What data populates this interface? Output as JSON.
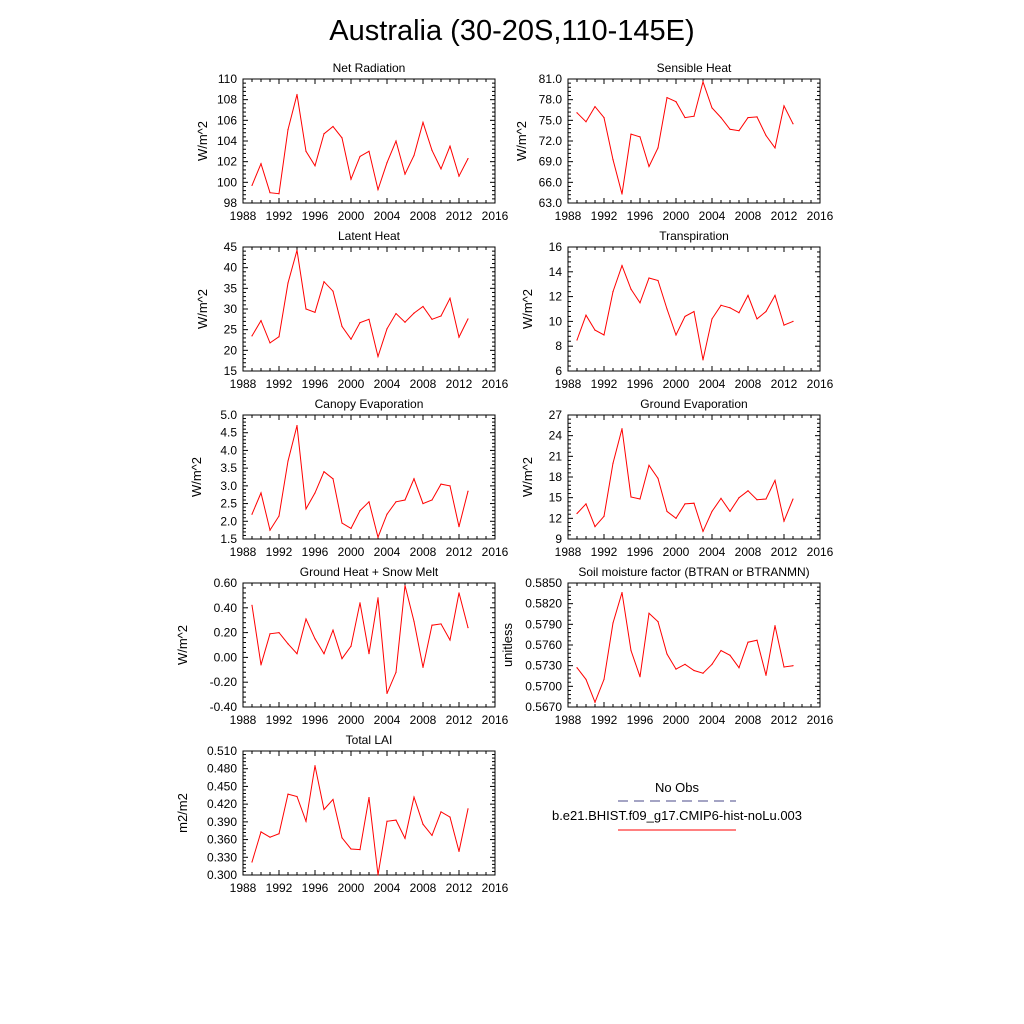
{
  "title": "Australia (30-20S,110-145E)",
  "colors": {
    "series": "#ff0000",
    "axis": "#000000",
    "obs_legend": "#4a4a8a"
  },
  "legend": {
    "obs_label": "No Obs",
    "model_label": "b.e21.BHIST.f09_g17.CMIP6-hist-noLu.003"
  },
  "chart_data": [
    {
      "type": "line",
      "title": "Net Radiation",
      "ylabel": "W/m^2",
      "xlim": [
        1988,
        2016
      ],
      "ylim": [
        98,
        110
      ],
      "xticks": [
        "1988",
        "1992",
        "1996",
        "2000",
        "2004",
        "2008",
        "2012",
        "2016"
      ],
      "yticks": [
        "98",
        "100",
        "102",
        "104",
        "106",
        "108",
        "110"
      ],
      "x": [
        1989,
        1990,
        1991,
        1992,
        1993,
        1994,
        1995,
        1996,
        1997,
        1998,
        1999,
        2000,
        2001,
        2002,
        2003,
        2004,
        2005,
        2006,
        2007,
        2008,
        2009,
        2010,
        2011,
        2012,
        2013
      ],
      "y": [
        99.7,
        101.8,
        99.0,
        98.9,
        105.1,
        108.5,
        103.0,
        101.6,
        104.7,
        105.4,
        104.3,
        100.3,
        102.5,
        103.0,
        99.3,
        101.9,
        104.0,
        100.8,
        102.6,
        105.8,
        103.1,
        101.3,
        103.5,
        100.6,
        102.3
      ]
    },
    {
      "type": "line",
      "title": "Sensible Heat",
      "ylabel": "W/m^2",
      "xlim": [
        1988,
        2016
      ],
      "ylim": [
        63.0,
        81.0
      ],
      "xticks": [
        "1988",
        "1992",
        "1996",
        "2000",
        "2004",
        "2008",
        "2012",
        "2016"
      ],
      "yticks": [
        "63.0",
        "66.0",
        "69.0",
        "72.0",
        "75.0",
        "78.0",
        "81.0"
      ],
      "x": [
        1989,
        1990,
        1991,
        1992,
        1993,
        1994,
        1995,
        1996,
        1997,
        1998,
        1999,
        2000,
        2001,
        2002,
        2003,
        2004,
        2005,
        2006,
        2007,
        2008,
        2009,
        2010,
        2011,
        2012,
        2013
      ],
      "y": [
        76.1,
        74.8,
        77.0,
        75.4,
        69.3,
        64.3,
        73.0,
        72.6,
        68.3,
        71.0,
        78.3,
        77.7,
        75.4,
        75.6,
        80.6,
        76.8,
        75.4,
        73.7,
        73.5,
        75.4,
        75.5,
        72.8,
        71.0,
        77.1,
        74.5
      ]
    },
    {
      "type": "line",
      "title": "Latent Heat",
      "ylabel": "W/m^2",
      "xlim": [
        1988,
        2016
      ],
      "ylim": [
        15,
        45
      ],
      "xticks": [
        "1988",
        "1992",
        "1996",
        "2000",
        "2004",
        "2008",
        "2012",
        "2016"
      ],
      "yticks": [
        "15",
        "20",
        "25",
        "30",
        "35",
        "40",
        "45"
      ],
      "x": [
        1989,
        1990,
        1991,
        1992,
        1993,
        1994,
        1995,
        1996,
        1997,
        1998,
        1999,
        2000,
        2001,
        2002,
        2003,
        2004,
        2005,
        2006,
        2007,
        2008,
        2009,
        2010,
        2011,
        2012,
        2013
      ],
      "y": [
        23.5,
        27.2,
        21.8,
        23.3,
        36.3,
        44.2,
        30.0,
        29.2,
        36.6,
        34.3,
        25.8,
        22.7,
        26.7,
        27.5,
        18.5,
        25.2,
        28.9,
        26.8,
        29.0,
        30.6,
        27.5,
        28.3,
        32.6,
        23.2,
        27.6
      ]
    },
    {
      "type": "line",
      "title": "Transpiration",
      "ylabel": "W/m^2",
      "xlim": [
        1988,
        2016
      ],
      "ylim": [
        6,
        16
      ],
      "xticks": [
        "1988",
        "1992",
        "1996",
        "2000",
        "2004",
        "2008",
        "2012",
        "2016"
      ],
      "yticks": [
        "6",
        "8",
        "10",
        "12",
        "14",
        "16"
      ],
      "x": [
        1989,
        1990,
        1991,
        1992,
        1993,
        1994,
        1995,
        1996,
        1997,
        1998,
        1999,
        2000,
        2001,
        2002,
        2003,
        2004,
        2005,
        2006,
        2007,
        2008,
        2009,
        2010,
        2011,
        2012,
        2013
      ],
      "y": [
        8.5,
        10.5,
        9.3,
        8.9,
        12.4,
        14.5,
        12.6,
        11.5,
        13.5,
        13.3,
        11.0,
        8.9,
        10.4,
        10.8,
        6.9,
        10.2,
        11.3,
        11.1,
        10.7,
        12.1,
        10.2,
        10.8,
        12.1,
        9.7,
        10.0
      ]
    },
    {
      "type": "line",
      "title": "Canopy Evaporation",
      "ylabel": "W/m^2",
      "xlim": [
        1988,
        2016
      ],
      "ylim": [
        1.5,
        5.0
      ],
      "xticks": [
        "1988",
        "1992",
        "1996",
        "2000",
        "2004",
        "2008",
        "2012",
        "2016"
      ],
      "yticks": [
        "1.5",
        "2.0",
        "2.5",
        "3.0",
        "3.5",
        "4.0",
        "4.5",
        "5.0"
      ],
      "x": [
        1989,
        1990,
        1991,
        1992,
        1993,
        1994,
        1995,
        1996,
        1997,
        1998,
        1999,
        2000,
        2001,
        2002,
        2003,
        2004,
        2005,
        2006,
        2007,
        2008,
        2009,
        2010,
        2011,
        2012,
        2013
      ],
      "y": [
        2.2,
        2.8,
        1.75,
        2.15,
        3.7,
        4.7,
        2.35,
        2.8,
        3.4,
        3.2,
        1.95,
        1.8,
        2.3,
        2.55,
        1.55,
        2.2,
        2.55,
        2.6,
        3.2,
        2.5,
        2.6,
        3.05,
        3.0,
        1.85,
        2.85
      ]
    },
    {
      "type": "line",
      "title": "Ground Evaporation",
      "ylabel": "W/m^2",
      "xlim": [
        1988,
        2016
      ],
      "ylim": [
        9,
        27
      ],
      "xticks": [
        "1988",
        "1992",
        "1996",
        "2000",
        "2004",
        "2008",
        "2012",
        "2016"
      ],
      "yticks": [
        "9",
        "12",
        "15",
        "18",
        "21",
        "24",
        "27"
      ],
      "x": [
        1989,
        1990,
        1991,
        1992,
        1993,
        1994,
        1995,
        1996,
        1997,
        1998,
        1999,
        2000,
        2001,
        2002,
        2003,
        2004,
        2005,
        2006,
        2007,
        2008,
        2009,
        2010,
        2011,
        2012,
        2013
      ],
      "y": [
        12.7,
        14.1,
        10.8,
        12.3,
        20.0,
        25.0,
        15.1,
        14.8,
        19.7,
        17.8,
        13.0,
        12.0,
        14.1,
        14.2,
        10.1,
        13.0,
        14.9,
        13.0,
        15.0,
        16.0,
        14.7,
        14.8,
        17.5,
        11.6,
        14.8
      ]
    },
    {
      "type": "line",
      "title": "Ground Heat + Snow Melt",
      "ylabel": "W/m^2",
      "xlim": [
        1988,
        2016
      ],
      "ylim": [
        -0.4,
        0.6
      ],
      "xticks": [
        "1988",
        "1992",
        "1996",
        "2000",
        "2004",
        "2008",
        "2012",
        "2016"
      ],
      "yticks": [
        "-0.40",
        "-0.20",
        "0.00",
        "0.20",
        "0.40",
        "0.60"
      ],
      "x": [
        1989,
        1990,
        1991,
        1992,
        1993,
        1994,
        1995,
        1996,
        1997,
        1998,
        1999,
        2000,
        2001,
        2002,
        2003,
        2004,
        2005,
        2006,
        2007,
        2008,
        2009,
        2010,
        2011,
        2012,
        2013
      ],
      "y": [
        0.42,
        -0.06,
        0.19,
        0.2,
        0.11,
        0.03,
        0.31,
        0.15,
        0.03,
        0.22,
        -0.01,
        0.09,
        0.44,
        0.03,
        0.48,
        -0.29,
        -0.12,
        0.58,
        0.29,
        -0.08,
        0.26,
        0.27,
        0.14,
        0.52,
        0.24
      ]
    },
    {
      "type": "line",
      "title": "Soil moisture factor (BTRAN or BTRANMN)",
      "ylabel": "unitless",
      "xlim": [
        1988,
        2016
      ],
      "ylim": [
        0.567,
        0.585
      ],
      "xticks": [
        "1988",
        "1992",
        "1996",
        "2000",
        "2004",
        "2008",
        "2012",
        "2016"
      ],
      "yticks": [
        "0.5670",
        "0.5700",
        "0.5730",
        "0.5760",
        "0.5790",
        "0.5820",
        "0.5850"
      ],
      "x": [
        1989,
        1990,
        1991,
        1992,
        1993,
        1994,
        1995,
        1996,
        1997,
        1998,
        1999,
        2000,
        2001,
        2002,
        2003,
        2004,
        2005,
        2006,
        2007,
        2008,
        2009,
        2010,
        2011,
        2012,
        2013
      ],
      "y": [
        0.5727,
        0.571,
        0.5677,
        0.571,
        0.5792,
        0.5836,
        0.5752,
        0.5714,
        0.5806,
        0.5794,
        0.5747,
        0.5725,
        0.5732,
        0.5723,
        0.5719,
        0.5732,
        0.5752,
        0.5745,
        0.5727,
        0.5764,
        0.5767,
        0.5716,
        0.5788,
        0.5728,
        0.573
      ]
    },
    {
      "type": "line",
      "title": "Total LAI",
      "ylabel": "m2/m2",
      "xlim": [
        1988,
        2016
      ],
      "ylim": [
        0.3,
        0.51
      ],
      "xticks": [
        "1988",
        "1992",
        "1996",
        "2000",
        "2004",
        "2008",
        "2012",
        "2016"
      ],
      "yticks": [
        "0.300",
        "0.330",
        "0.360",
        "0.390",
        "0.420",
        "0.450",
        "0.480",
        "0.510"
      ],
      "x": [
        1989,
        1990,
        1991,
        1992,
        1993,
        1994,
        1995,
        1996,
        1997,
        1998,
        1999,
        2000,
        2001,
        2002,
        2003,
        2004,
        2005,
        2006,
        2007,
        2008,
        2009,
        2010,
        2011,
        2012,
        2013
      ],
      "y": [
        0.322,
        0.373,
        0.364,
        0.37,
        0.437,
        0.433,
        0.391,
        0.485,
        0.411,
        0.428,
        0.363,
        0.344,
        0.343,
        0.431,
        0.3,
        0.391,
        0.393,
        0.362,
        0.432,
        0.386,
        0.367,
        0.407,
        0.398,
        0.34,
        0.412
      ]
    }
  ]
}
